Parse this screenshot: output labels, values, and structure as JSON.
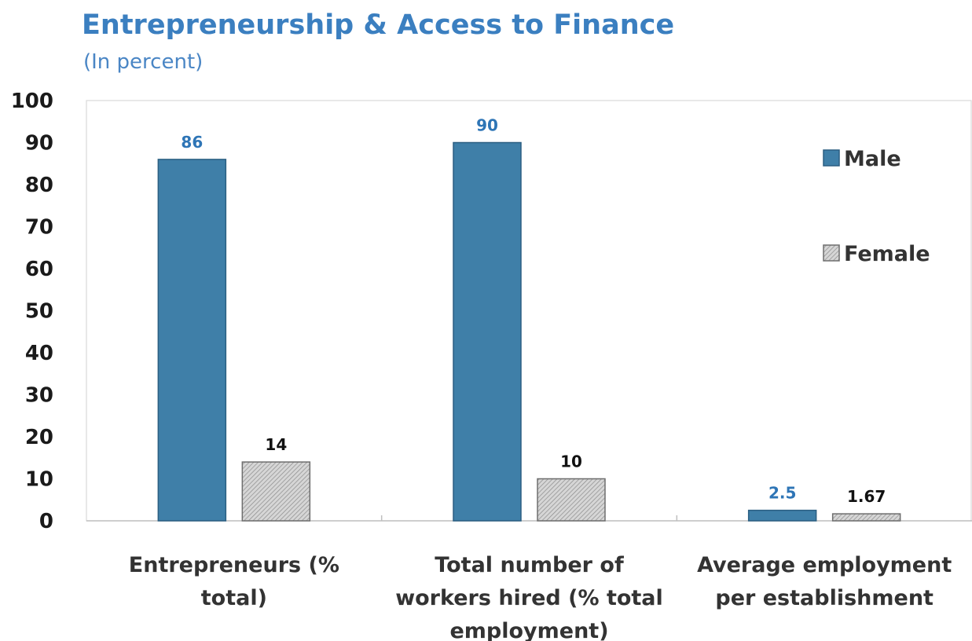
{
  "chart_data": {
    "type": "bar",
    "title": "Entrepreneurship & Access to Finance",
    "subtitle": "(In percent)",
    "categories": [
      [
        "Entrepreneurs (%",
        "total)"
      ],
      [
        "Total number of",
        "workers hired (% total",
        "employment)"
      ],
      [
        "Average employment",
        "per establishment"
      ]
    ],
    "series": [
      {
        "name": "Male",
        "values": [
          86,
          90,
          2.5
        ],
        "labels": [
          "86",
          "90",
          "2.5"
        ],
        "color": "#3f7fa8",
        "label_color": "#2e75b6"
      },
      {
        "name": "Female",
        "values": [
          14,
          10,
          1.67
        ],
        "labels": [
          "14",
          "10",
          "1.67"
        ],
        "color": "#c8c8c8",
        "label_color": "#111111"
      }
    ],
    "ylim": [
      0,
      100
    ],
    "yticks": [
      0,
      10,
      20,
      30,
      40,
      50,
      60,
      70,
      80,
      90,
      100
    ],
    "grid": false,
    "legend": "right"
  }
}
